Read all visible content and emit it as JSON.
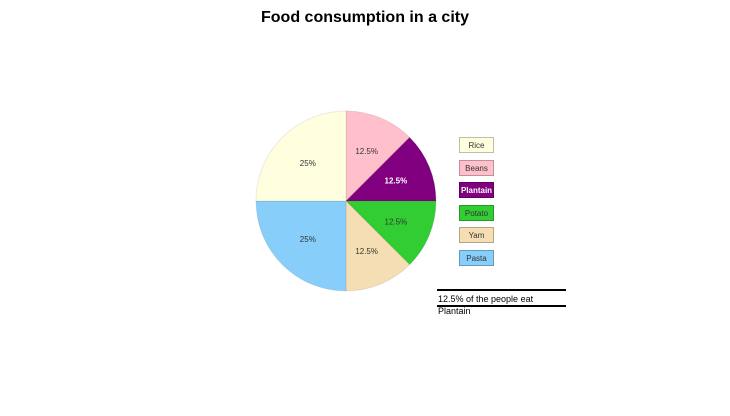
{
  "chart_data": {
    "type": "pie",
    "title": "Food consumption in a city",
    "categories": [
      "Rice",
      "Beans",
      "Plantain",
      "Potato",
      "Yam",
      "Pasta"
    ],
    "values": [
      25,
      12.5,
      12.5,
      12.5,
      12.5,
      25
    ],
    "labels": [
      "25%",
      "12.5%",
      "12.5%",
      "12.5%",
      "12.5%",
      "25%"
    ],
    "colors": [
      "#FFFFE0",
      "#FFC0CB",
      "#800080",
      "#32CD32",
      "#F5DEB3",
      "#87CEFA"
    ],
    "legend_position": "right",
    "annotation": "12.5% of the people eat Plantain"
  },
  "legend": [
    "Rice",
    "Beans",
    "Plantain",
    "Potato",
    "Yam",
    "Pasta"
  ]
}
